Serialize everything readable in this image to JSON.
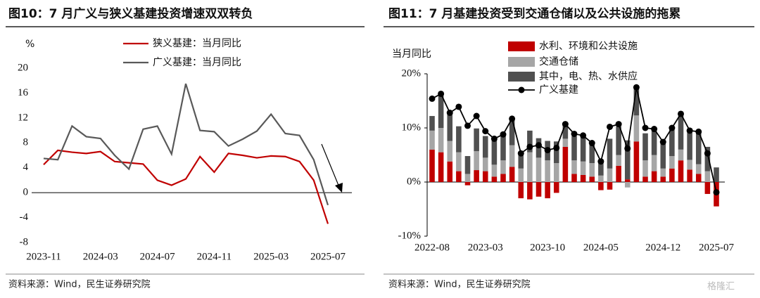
{
  "chart_data": [
    {
      "type": "line",
      "title": "图10：7 月广义与狭义基建投资增速双双转负",
      "y_label": "%",
      "source": "资料来源：Wind，民生证券研究院",
      "categories": [
        "2023-11",
        null,
        null,
        null,
        "2024-03",
        null,
        null,
        null,
        "2024-07",
        null,
        null,
        null,
        "2024-11",
        null,
        null,
        null,
        "2025-03",
        null,
        null,
        null,
        "2025-07"
      ],
      "series": [
        {
          "name": "狭义基建：当月同比",
          "color": "#c00000",
          "values": [
            4.5,
            6.8,
            6.5,
            6.3,
            6.6,
            5.0,
            4.8,
            4.6,
            2.0,
            1.2,
            2.2,
            5.8,
            3.3,
            6.3,
            6.0,
            5.6,
            5.9,
            5.8,
            5.0,
            2.0,
            -5.0
          ]
        },
        {
          "name": "广义基建：当月同比",
          "color": "#595959",
          "values": [
            5.5,
            5.3,
            10.7,
            9.0,
            8.7,
            6.0,
            3.8,
            10.2,
            10.7,
            6.2,
            17.5,
            10.0,
            9.8,
            7.5,
            8.6,
            9.9,
            12.6,
            9.5,
            9.2,
            5.3,
            -2.0
          ]
        }
      ],
      "ylim": [
        -8,
        20
      ],
      "yticks": [
        -8,
        -4,
        0,
        4,
        8,
        12,
        16,
        20
      ]
    },
    {
      "type": "bar",
      "title": "图11：7 月基建投资受到交通仓储以及公共设施的拖累",
      "y_label": "当月同比",
      "source": "资料来源：Wind，民生证券研究院",
      "stacked": true,
      "categories": [
        "2022-08",
        null,
        null,
        null,
        null,
        null,
        "2023-03",
        null,
        null,
        null,
        null,
        null,
        null,
        "2023-10",
        null,
        null,
        null,
        null,
        null,
        "2024-05",
        null,
        null,
        null,
        null,
        null,
        null,
        "2024-12",
        null,
        null,
        null,
        null,
        null,
        "2025-07"
      ],
      "series": [
        {
          "name": "水利、环境和公共设施",
          "color": "#c00000",
          "values": [
            6.0,
            5.5,
            3.8,
            2.0,
            -0.6,
            2.2,
            2.0,
            1.0,
            1.5,
            2.8,
            -3.0,
            -3.2,
            -2.7,
            -3.0,
            -2.0,
            6.5,
            1.5,
            1.3,
            1.0,
            -1.5,
            -1.4,
            3.0,
            0.5,
            7.5,
            1.0,
            2.0,
            1.0,
            2.5,
            4.0,
            2.3,
            1.5,
            -2.2,
            -4.5
          ]
        },
        {
          "name": "交通仓储",
          "color": "#a6a6a6",
          "values": [
            3.5,
            4.5,
            3.8,
            3.5,
            1.5,
            3.5,
            2.5,
            2.2,
            2.5,
            4.0,
            2.5,
            5.5,
            4.5,
            4.0,
            3.5,
            1.5,
            2.5,
            2.5,
            2.5,
            1.2,
            2.5,
            2.0,
            -1.0,
            4.8,
            3.0,
            3.0,
            1.5,
            2.3,
            2.0,
            1.8,
            1.8,
            2.0,
            0
          ]
        },
        {
          "name": "其中，电、热、水供应",
          "color": "#505050",
          "values": [
            2.7,
            6.0,
            5.0,
            4.8,
            3.3,
            4.2,
            4.0,
            4.6,
            5.0,
            4.8,
            3.0,
            4.0,
            3.6,
            3.6,
            4.0,
            2.8,
            4.5,
            4.8,
            4.0,
            3.0,
            5.5,
            5.3,
            7.2,
            5.0,
            5.0,
            4.6,
            5.0,
            5.3,
            6.5,
            5.4,
            5.8,
            4.5,
            2.7
          ]
        },
        {
          "name": "广义基建",
          "type": "line",
          "color": "#000000",
          "values": [
            15.4,
            16.3,
            12.8,
            13.9,
            10.4,
            12.2,
            9.4,
            8.0,
            8.8,
            11.7,
            5.3,
            6.5,
            6.8,
            5.9,
            6.3,
            10.7,
            8.9,
            8.6,
            7.2,
            3.8,
            10.2,
            10.7,
            6.2,
            17.5,
            10.0,
            9.8,
            7.4,
            10.0,
            12.6,
            9.5,
            9.3,
            5.3,
            -1.9
          ]
        }
      ],
      "ylim": [
        -10,
        20
      ],
      "yticks": [
        {
          "value": -10,
          "label": "-10%"
        },
        {
          "value": 0,
          "label": "0%"
        },
        {
          "value": 10,
          "label": "10%"
        },
        {
          "value": 20,
          "label": "20%"
        }
      ]
    }
  ]
}
